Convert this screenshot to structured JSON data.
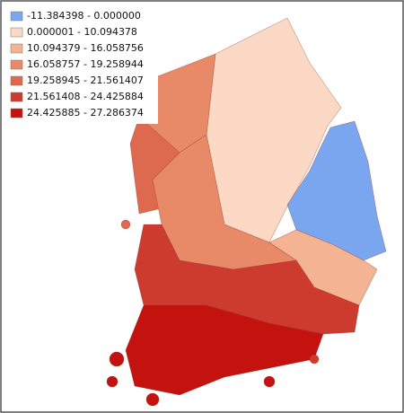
{
  "legend": {
    "items": [
      {
        "label": "-11.384398 - 0.000000",
        "color": "#7aa6f0"
      },
      {
        "label": "0.000001 - 10.094378",
        "color": "#fbd9c4"
      },
      {
        "label": "10.094379 - 16.058756",
        "color": "#f4b392"
      },
      {
        "label": "16.058757 - 19.258944",
        "color": "#e88a68"
      },
      {
        "label": "19.258945 - 21.561407",
        "color": "#dd6a4e"
      },
      {
        "label": "21.561408 - 24.425884",
        "color": "#cc3b2e"
      },
      {
        "label": "24.425885 - 27.286374",
        "color": "#c4120f"
      }
    ]
  }
}
